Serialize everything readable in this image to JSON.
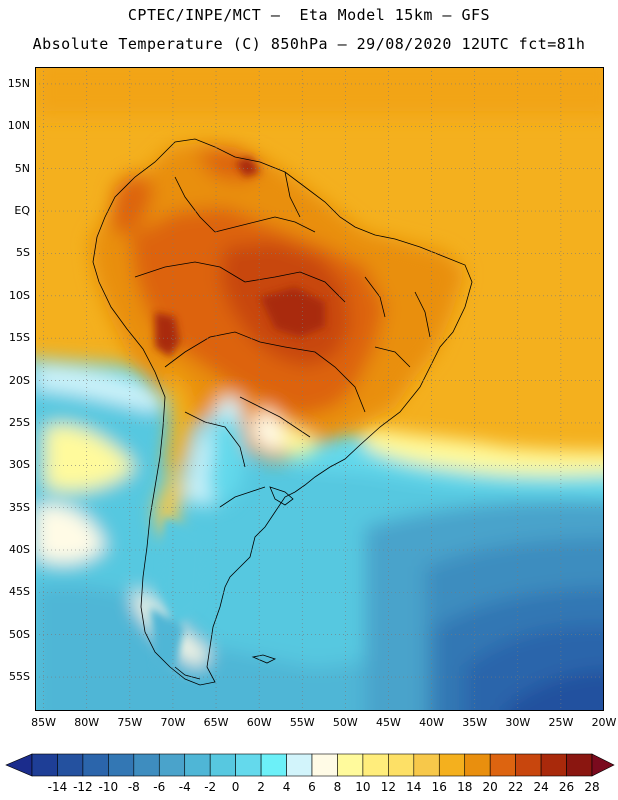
{
  "title": {
    "line1": "CPTEC/INPE/MCT –  Eta Model 15km – GFS",
    "line2": "Absolute Temperature (C) 850hPa – 29/08/2020 12UTC fct=81h"
  },
  "map": {
    "region": "South America",
    "lon_range": [
      -86,
      -20
    ],
    "lat_range": [
      -59,
      17
    ],
    "lat_labels": [
      "15N",
      "10N",
      "5N",
      "EQ",
      "5S",
      "10S",
      "15S",
      "20S",
      "25S",
      "30S",
      "35S",
      "40S",
      "45S",
      "50S",
      "55S"
    ],
    "lat_values": [
      15,
      10,
      5,
      0,
      -5,
      -10,
      -15,
      -20,
      -25,
      -30,
      -35,
      -40,
      -45,
      -50,
      -55
    ],
    "lon_labels": [
      "85W",
      "80W",
      "75W",
      "70W",
      "65W",
      "60W",
      "55W",
      "50W",
      "45W",
      "40W",
      "35W",
      "30W",
      "25W",
      "20W"
    ],
    "lon_values": [
      -85,
      -80,
      -75,
      -70,
      -65,
      -60,
      -55,
      -50,
      -45,
      -40,
      -35,
      -30,
      -25,
      -20
    ]
  },
  "colorbar": {
    "labels": [
      "-14",
      "-12",
      "-10",
      "-8",
      "-6",
      "-4",
      "-2",
      "0",
      "2",
      "4",
      "6",
      "8",
      "10",
      "12",
      "14",
      "16",
      "18",
      "20",
      "22",
      "24",
      "26",
      "28"
    ],
    "under_color": "#1b2c8c",
    "over_color": "#7a0a1e",
    "colors": [
      "#1e3e96",
      "#24519f",
      "#2b65ab",
      "#3377b4",
      "#3e8dbf",
      "#4aa3cb",
      "#4fb6d6",
      "#57c8e0",
      "#64d9ec",
      "#6cf0f8",
      "#d2f4fb",
      "#fffbe6",
      "#fffa9c",
      "#ffed7c",
      "#fde066",
      "#f7c84a",
      "#f4b01e",
      "#e98f0e",
      "#dd6410",
      "#c8460d",
      "#a9290b",
      "#8a1610"
    ]
  }
}
